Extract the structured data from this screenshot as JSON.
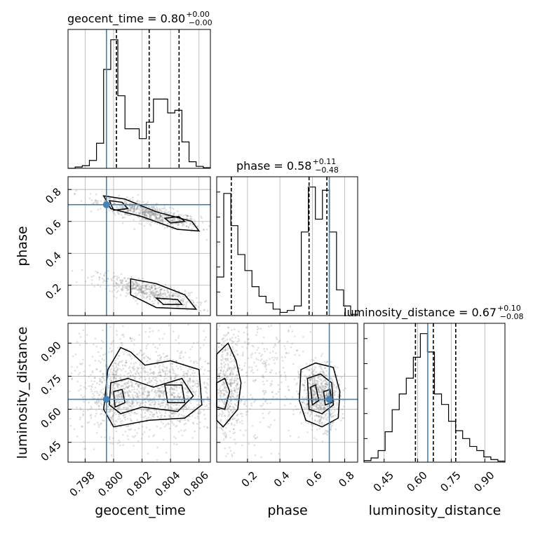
{
  "chart_data": {
    "type": "corner",
    "parameters": [
      "geocent_time",
      "phase",
      "luminosity_distance"
    ],
    "axis_labels": {
      "geocent_time": "geocent_time",
      "phase": "phase",
      "luminosity_distance": "luminosity_distance"
    },
    "ranges": {
      "geocent_time": [
        0.7968,
        0.8068
      ],
      "phase": [
        0.01,
        0.88
      ],
      "luminosity_distance": [
        0.36,
        0.99
      ]
    },
    "ticks": {
      "geocent_time": [
        "0.798",
        "0.800",
        "0.802",
        "0.804",
        "0.806"
      ],
      "phase": [
        "0.2",
        "0.4",
        "0.6",
        "0.8"
      ],
      "luminosity_distance": [
        "0.45",
        "0.60",
        "0.75",
        "0.90"
      ]
    },
    "truths": {
      "geocent_time": 0.7995,
      "phase": 0.705,
      "luminosity_distance": 0.645
    },
    "titles": {
      "geocent_time": {
        "text": "geocent_time = 0.80",
        "sup": "+0.00",
        "sub": "−0.00"
      },
      "phase": {
        "text": "phase = 0.58",
        "sup": "+0.11",
        "sub": "−0.48"
      },
      "luminosity_distance": {
        "text": "luminosity_distance = 0.67",
        "sup": "+0.10",
        "sub": "−0.08"
      }
    },
    "quantiles": {
      "geocent_time": [
        0.8002,
        0.8025,
        0.8046
      ],
      "phase": [
        0.1,
        0.58,
        0.69
      ],
      "luminosity_distance": [
        0.59,
        0.67,
        0.77
      ]
    },
    "histograms": {
      "geocent_time": {
        "edges": [
          0.7968,
          0.7973,
          0.7978,
          0.7983,
          0.7988,
          0.7993,
          0.7998,
          0.8003,
          0.8008,
          0.8013,
          0.8018,
          0.8023,
          0.8028,
          0.8033,
          0.8038,
          0.8043,
          0.8048,
          0.8053,
          0.8058,
          0.8063,
          0.8068
        ],
        "counts": [
          0,
          2,
          4,
          12,
          38,
          150,
          195,
          110,
          60,
          60,
          45,
          70,
          105,
          105,
          84,
          88,
          40,
          10,
          3,
          1
        ]
      },
      "phase": {
        "edges": [
          0.01,
          0.0535,
          0.097,
          0.1405,
          0.184,
          0.2275,
          0.271,
          0.3145,
          0.358,
          0.4015,
          0.445,
          0.4885,
          0.532,
          0.5755,
          0.619,
          0.6625,
          0.706,
          0.7495,
          0.793,
          0.8365,
          0.88
        ],
        "counts": [
          60,
          190,
          140,
          95,
          70,
          45,
          30,
          20,
          10,
          5,
          8,
          15,
          130,
          200,
          150,
          195,
          130,
          40,
          15,
          2
        ]
      },
      "luminosity_distance": {
        "edges": [
          0.36,
          0.3915,
          0.423,
          0.4545,
          0.486,
          0.5175,
          0.549,
          0.5805,
          0.612,
          0.6435,
          0.675,
          0.7065,
          0.738,
          0.7695,
          0.801,
          0.8325,
          0.864,
          0.8955,
          0.927,
          0.9585,
          0.99
        ],
        "counts": [
          3,
          8,
          22,
          58,
          100,
          130,
          160,
          200,
          245,
          210,
          130,
          110,
          78,
          60,
          45,
          30,
          22,
          10,
          5,
          2
        ]
      }
    }
  }
}
